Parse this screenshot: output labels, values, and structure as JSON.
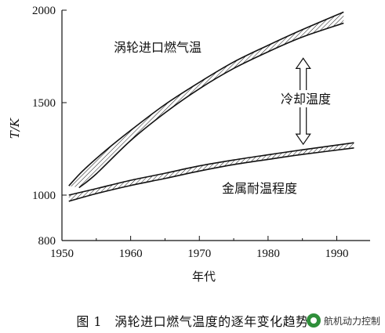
{
  "chart_data": {
    "type": "area",
    "title": "",
    "xlabel": "年代",
    "ylabel": "T/K",
    "xlim": [
      1950,
      1993
    ],
    "ylim": [
      800,
      2000
    ],
    "x_ticks": [
      "1950",
      "1960",
      "1970",
      "1980",
      "1990"
    ],
    "y_ticks": [
      "800",
      "1000",
      "1500",
      "2000"
    ],
    "grid": false,
    "series": [
      {
        "name": "涡轮进口燃气温",
        "upper": {
          "x": [
            1951,
            1953,
            1956,
            1960,
            1965,
            1970,
            1975,
            1980,
            1985,
            1991
          ],
          "y": [
            1050,
            1130,
            1230,
            1350,
            1490,
            1610,
            1720,
            1810,
            1895,
            1990
          ]
        },
        "lower": {
          "x": [
            1952.5,
            1955,
            1960,
            1965,
            1970,
            1975,
            1980,
            1985,
            1991
          ],
          "y": [
            1040,
            1115,
            1295,
            1445,
            1575,
            1685,
            1775,
            1855,
            1930
          ]
        }
      },
      {
        "name": "金属耐温程度",
        "upper": {
          "x": [
            1951,
            1955,
            1960,
            1965,
            1970,
            1975,
            1980,
            1985,
            1992.5
          ],
          "y": [
            1000,
            1035,
            1080,
            1118,
            1158,
            1190,
            1218,
            1245,
            1283
          ]
        },
        "lower": {
          "x": [
            1951,
            1955,
            1960,
            1965,
            1970,
            1975,
            1980,
            1985,
            1992.5
          ],
          "y": [
            973,
            1008,
            1052,
            1090,
            1130,
            1165,
            1193,
            1220,
            1255
          ]
        }
      }
    ],
    "annotations": [
      {
        "text": "冷却温度",
        "x": 1985,
        "y": 1530,
        "arrow": "double-vertical",
        "arrow_y": [
          1275,
          1740
        ]
      }
    ]
  },
  "labels": {
    "gas_temp": "涡轮进口燃气温",
    "cooling": "冷却温度",
    "metal": "金属耐温程度"
  },
  "caption": {
    "fig_no": "图 1",
    "text": "涡轮进口燃气温度的逐年变化趋势"
  },
  "watermark": {
    "text": "航机动力控制",
    "icon": "wechat-account-icon"
  }
}
